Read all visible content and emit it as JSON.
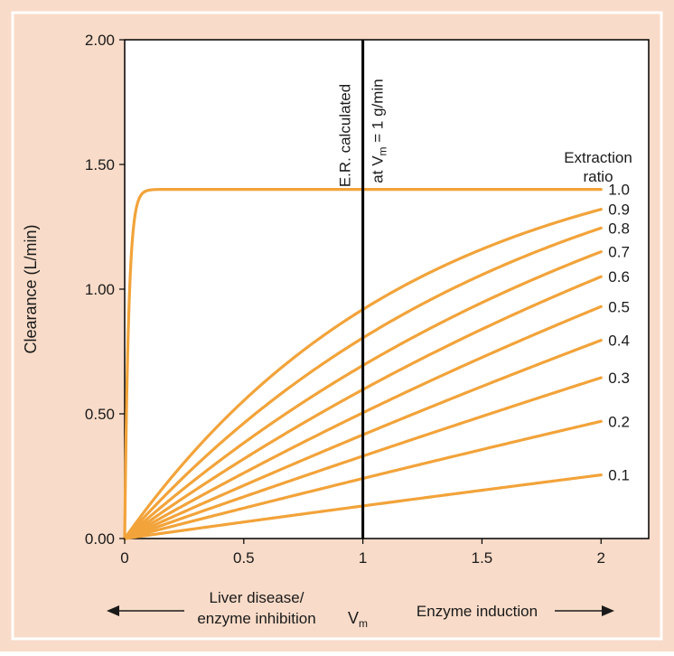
{
  "chart_data": {
    "type": "line",
    "colors": {
      "background": "#f8dbc8",
      "plot_bg": "#ffffff",
      "curve": "#f2a33a",
      "axis": "#000000"
    },
    "ylabel": "Clearance (L/min)",
    "y_ticks": [
      "0.00",
      "0.50",
      "1.00",
      "1.50",
      "2.00"
    ],
    "x_ticks": [
      "0",
      "0.5",
      "1",
      "1.5",
      "2"
    ],
    "xlim": [
      0,
      2.2
    ],
    "ylim": [
      0,
      2.0
    ],
    "grid": false,
    "vertical_line": {
      "x": 1,
      "label_line1": "E.R. calculated",
      "label_line2_prefix": "at V",
      "label_line2_sub": "m",
      "label_line2_suffix": " = 1 g/min"
    },
    "legend_title": [
      "Extraction",
      "ratio"
    ],
    "series": [
      {
        "name": "1.0",
        "y_at_2": 1.4
      },
      {
        "name": "0.9",
        "y_at_2": 1.32
      },
      {
        "name": "0.8",
        "y_at_2": 1.245
      },
      {
        "name": "0.7",
        "y_at_2": 1.15
      },
      {
        "name": "0.6",
        "y_at_2": 1.05
      },
      {
        "name": "0.5",
        "y_at_2": 0.93
      },
      {
        "name": "0.4",
        "y_at_2": 0.795
      },
      {
        "name": "0.3",
        "y_at_2": 0.645
      },
      {
        "name": "0.2",
        "y_at_2": 0.47
      },
      {
        "name": "0.1",
        "y_at_2": 0.255
      }
    ],
    "bottom_annotation": {
      "left_line1": "Liver disease/",
      "left_line2": "enzyme inhibition",
      "center_main": "V",
      "center_sub": "m",
      "right": "Enzyme induction"
    }
  }
}
